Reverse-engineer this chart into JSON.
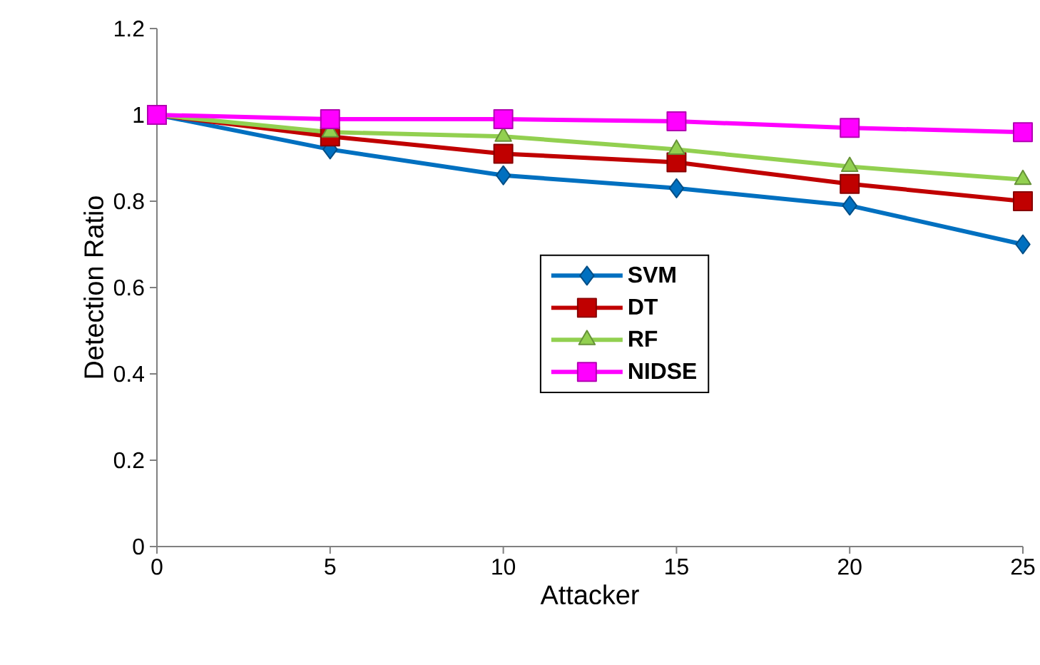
{
  "chart_data": {
    "type": "line",
    "xlabel": "Attacker",
    "ylabel": "Detection Ratio",
    "x": [
      0,
      5,
      10,
      15,
      20,
      25
    ],
    "series": [
      {
        "name": "SVM",
        "color": "#0070c0",
        "marker": "diamond",
        "values": [
          1,
          0.92,
          0.86,
          0.83,
          0.79,
          0.7
        ]
      },
      {
        "name": "DT",
        "color": "#c00000",
        "marker": "square",
        "values": [
          1,
          0.95,
          0.91,
          0.89,
          0.84,
          0.8
        ]
      },
      {
        "name": "RF",
        "color": "#92d050",
        "marker": "triangle",
        "values": [
          1,
          0.96,
          0.95,
          0.92,
          0.88,
          0.85
        ]
      },
      {
        "name": "NIDSE",
        "color": "#ff00ff",
        "marker": "square",
        "values": [
          1,
          0.99,
          0.99,
          0.985,
          0.97,
          0.96
        ]
      }
    ],
    "xlim": [
      0,
      25
    ],
    "xticks": [
      0,
      5,
      10,
      15,
      20,
      25
    ],
    "ylim": [
      0,
      1.2
    ],
    "yticks": [
      0,
      0.2,
      0.4,
      0.6,
      0.8,
      1,
      1.2
    ],
    "grid": false,
    "legend": "center",
    "line_style": "solid"
  }
}
